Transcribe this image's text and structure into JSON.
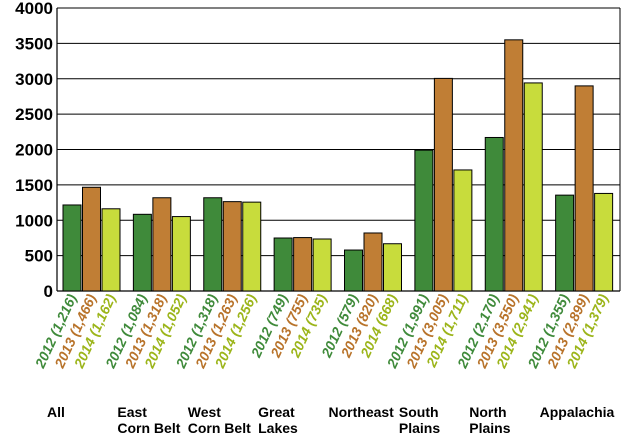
{
  "chart_data": {
    "type": "bar",
    "title": "",
    "xlabel": "",
    "ylabel": "",
    "ylim": [
      0,
      4000
    ],
    "y_ticks": [
      "0",
      "500",
      "1000",
      "1500",
      "2000",
      "2500",
      "3000",
      "3500",
      "4000"
    ],
    "grid": "horizontal",
    "legend": "none",
    "categories": [
      [
        "All"
      ],
      [
        "East",
        "Corn Belt"
      ],
      [
        "West",
        "Corn Belt"
      ],
      [
        "Great",
        "Lakes"
      ],
      [
        "Northeast"
      ],
      [
        "South",
        "Plains"
      ],
      [
        "North",
        "Plains"
      ],
      [
        "Appalachia"
      ]
    ],
    "series": [
      {
        "color": "#3f8a3a",
        "label_color": "#3f8a3a",
        "values": [
          1216,
          1084,
          1318,
          749,
          579,
          1991,
          2170,
          1355
        ],
        "bar_labels": [
          "2012 (1,216)",
          "2012 (1,084)",
          "2012 (1,318)",
          "2012 (749)",
          "2012 (579)",
          "2012 (1,991)",
          "2012 (2,170)",
          "2012 (1,355)"
        ]
      },
      {
        "color": "#c07e35",
        "label_color": "#b8732a",
        "values": [
          1466,
          1318,
          1263,
          755,
          820,
          3005,
          3550,
          2899
        ],
        "bar_labels": [
          "2013 (1,466)",
          "2013 (1,318)",
          "2013 (1,263)",
          "2013 (755)",
          "2013 (820)",
          "2013 (3,005)",
          "2013 (3,550)",
          "2013 (2,899)"
        ]
      },
      {
        "color": "#c8dc3c",
        "label_color": "#9cb51a",
        "values": [
          1162,
          1052,
          1256,
          735,
          668,
          1711,
          2941,
          1379
        ],
        "bar_labels": [
          "2014 (1,162)",
          "2014 (1,052)",
          "2014 (1,256)",
          "2014 (735)",
          "2014 (668)",
          "2014 (1,711)",
          "2014 (2,941)",
          "2014 (1,379)"
        ]
      }
    ]
  }
}
